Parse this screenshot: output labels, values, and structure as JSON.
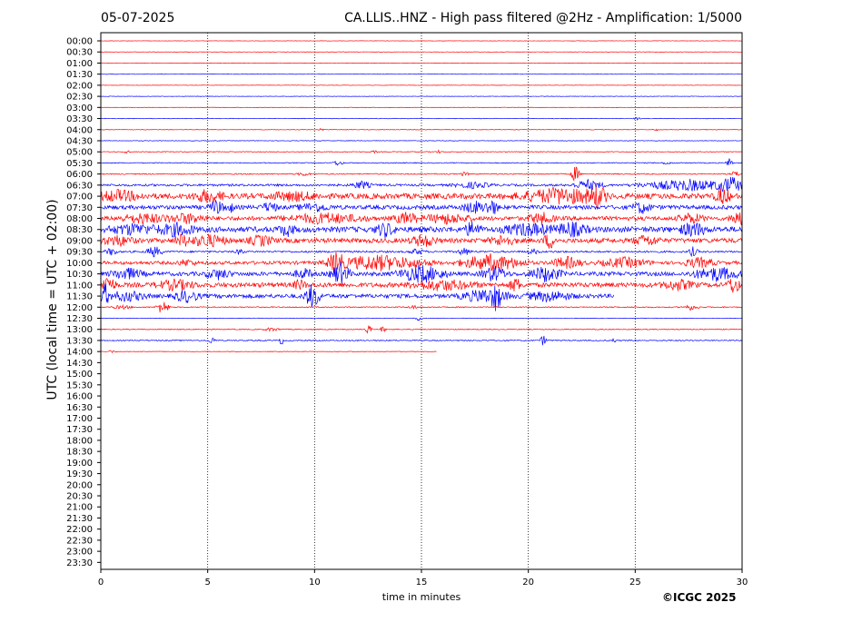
{
  "header": {
    "date": "05-07-2025",
    "title": "CA.LLIS..HNZ - High pass filtered @2Hz - Amplification: 1/5000"
  },
  "footer": {
    "copyright": "©ICGC 2025"
  },
  "colors": {
    "trace_a": "#ff0000",
    "trace_b": "#0000ff",
    "axes": "#000000",
    "grid": "#000000"
  },
  "chart_data": {
    "type": "line",
    "title": "CA.LLIS..HNZ - High pass filtered @2Hz - Amplification: 1/5000",
    "xlabel": "time in minutes",
    "ylabel": "UTC (local time = UTC + 02:00)",
    "xlim": [
      0,
      30
    ],
    "x_ticks": [
      0,
      5,
      10,
      15,
      20,
      25,
      30
    ],
    "x_grid": "dotted vertical lines at 5, 10, 15, 20, 25",
    "y_ticks": [
      "00:00",
      "00:30",
      "01:00",
      "01:30",
      "02:00",
      "02:30",
      "03:00",
      "03:30",
      "04:00",
      "04:30",
      "05:00",
      "05:30",
      "06:00",
      "06:30",
      "07:00",
      "07:30",
      "08:00",
      "08:30",
      "09:00",
      "09:30",
      "10:00",
      "10:30",
      "11:00",
      "11:30",
      "12:00",
      "12:30",
      "13:00",
      "13:30",
      "14:00",
      "14:30",
      "15:00",
      "15:30",
      "16:00",
      "16:30",
      "17:00",
      "17:30",
      "18:00",
      "18:30",
      "19:00",
      "19:30",
      "20:00",
      "20:30",
      "21:00",
      "21:30",
      "22:00",
      "22:30",
      "23:00",
      "23:30"
    ],
    "series_colors": "rows alternate red and blue",
    "rows": [
      {
        "label": "00:00",
        "color": "red",
        "end_minute": 30,
        "noise": 0.2,
        "bursts": []
      },
      {
        "label": "00:30",
        "color": "red",
        "end_minute": 30,
        "noise": 0.2,
        "bursts": []
      },
      {
        "label": "01:00",
        "color": "red",
        "end_minute": 30,
        "noise": 0.2,
        "bursts": []
      },
      {
        "label": "01:30",
        "color": "blue",
        "end_minute": 30,
        "noise": 0.2,
        "bursts": []
      },
      {
        "label": "02:00",
        "color": "red",
        "end_minute": 30,
        "noise": 0.2,
        "bursts": []
      },
      {
        "label": "02:30",
        "color": "blue",
        "end_minute": 30,
        "noise": 0.2,
        "bursts": []
      },
      {
        "label": "03:00",
        "color": "red",
        "end_minute": 30,
        "noise": 0.2,
        "bursts": []
      },
      {
        "label": "03:30",
        "color": "blue",
        "end_minute": 30,
        "noise": 0.3,
        "bursts": [
          [
            25.1,
            0.2,
            1.5
          ]
        ]
      },
      {
        "label": "04:00",
        "color": "red",
        "end_minute": 30,
        "noise": 0.3,
        "bursts": [
          [
            10.3,
            0.2,
            1.2
          ],
          [
            26,
            0.2,
            1.2
          ]
        ]
      },
      {
        "label": "04:30",
        "color": "blue",
        "end_minute": 30,
        "noise": 0.3,
        "bursts": []
      },
      {
        "label": "05:00",
        "color": "red",
        "end_minute": 30,
        "noise": 0.4,
        "bursts": [
          [
            1.2,
            0.2,
            2.5
          ],
          [
            12.8,
            0.2,
            1.5
          ],
          [
            15.8,
            0.2,
            1.5
          ]
        ]
      },
      {
        "label": "05:30",
        "color": "blue",
        "end_minute": 30,
        "noise": 0.5,
        "bursts": [
          [
            11.1,
            0.3,
            3
          ],
          [
            29.4,
            0.2,
            6
          ],
          [
            26.5,
            0.3,
            2
          ]
        ]
      },
      {
        "label": "06:00",
        "color": "red",
        "end_minute": 30,
        "noise": 0.6,
        "bursts": [
          [
            9.5,
            0.4,
            2
          ],
          [
            22.2,
            0.3,
            9
          ],
          [
            29.7,
            0.3,
            3
          ],
          [
            17,
            0.3,
            2
          ]
        ]
      },
      {
        "label": "06:30",
        "color": "blue",
        "end_minute": 30,
        "noise": 1.2,
        "bursts": [
          [
            12.2,
            0.6,
            4
          ],
          [
            17.4,
            1.2,
            3
          ],
          [
            22.8,
            1,
            5
          ],
          [
            27.5,
            3,
            6
          ],
          [
            29.5,
            0.8,
            7
          ]
        ]
      },
      {
        "label": "07:00",
        "color": "red",
        "end_minute": 30,
        "noise": 3,
        "bursts": [
          [
            0.8,
            1.5,
            5
          ],
          [
            5,
            1,
            6
          ],
          [
            9,
            1.5,
            4
          ],
          [
            21.5,
            2.5,
            8
          ],
          [
            23.2,
            0.6,
            9
          ],
          [
            29.1,
            0.5,
            8
          ]
        ]
      },
      {
        "label": "07:30",
        "color": "blue",
        "end_minute": 30,
        "noise": 2.2,
        "bursts": [
          [
            5.4,
            0.4,
            8
          ],
          [
            6,
            0.3,
            6
          ],
          [
            7.9,
            0.5,
            5
          ],
          [
            10,
            1,
            4
          ],
          [
            17.5,
            0.8,
            6
          ],
          [
            18.3,
            0.4,
            8
          ],
          [
            25.3,
            0.6,
            6
          ]
        ]
      },
      {
        "label": "08:00",
        "color": "red",
        "end_minute": 30,
        "noise": 2.2,
        "bursts": [
          [
            2,
            1.5,
            5
          ],
          [
            4,
            1.2,
            5
          ],
          [
            10.5,
            2.5,
            5
          ],
          [
            14.3,
            0.8,
            6
          ],
          [
            16.2,
            1.5,
            5
          ],
          [
            20.6,
            0.8,
            6
          ],
          [
            27.6,
            0.8,
            5
          ],
          [
            29.8,
            0.5,
            8
          ]
        ]
      },
      {
        "label": "08:30",
        "color": "blue",
        "end_minute": 30,
        "noise": 3,
        "bursts": [
          [
            1.5,
            1.5,
            5
          ],
          [
            3.5,
            1.2,
            6
          ],
          [
            8.7,
            0.5,
            6
          ],
          [
            13.3,
            0.6,
            7
          ],
          [
            17.4,
            0.5,
            8
          ],
          [
            20,
            1.5,
            6
          ],
          [
            22,
            1,
            7
          ],
          [
            27.7,
            0.8,
            7
          ]
        ]
      },
      {
        "label": "09:00",
        "color": "red",
        "end_minute": 30,
        "noise": 2.5,
        "bursts": [
          [
            0.8,
            1,
            5
          ],
          [
            3.8,
            0.5,
            6
          ],
          [
            5,
            1.2,
            6
          ],
          [
            7.5,
            0.8,
            5
          ],
          [
            15.1,
            0.8,
            6
          ],
          [
            18.8,
            0.8,
            5
          ],
          [
            21,
            0.4,
            8
          ],
          [
            25.5,
            0.8,
            5
          ]
        ]
      },
      {
        "label": "09:30",
        "color": "blue",
        "end_minute": 30,
        "noise": 1,
        "bursts": [
          [
            0.5,
            0.4,
            4
          ],
          [
            2.5,
            0.5,
            6
          ],
          [
            6.5,
            0.3,
            3
          ],
          [
            14.8,
            0.5,
            3
          ],
          [
            17,
            0.4,
            4
          ],
          [
            20.2,
            0.4,
            3
          ],
          [
            27.7,
            0.3,
            5
          ]
        ]
      },
      {
        "label": "10:00",
        "color": "red",
        "end_minute": 30,
        "noise": 1.8,
        "bursts": [
          [
            4,
            0.6,
            3
          ],
          [
            11,
            0.5,
            10
          ],
          [
            13,
            3,
            8
          ],
          [
            18.3,
            2,
            9
          ],
          [
            21.8,
            1,
            6
          ],
          [
            24.5,
            1.5,
            5
          ],
          [
            28,
            1,
            5
          ]
        ]
      },
      {
        "label": "10:30",
        "color": "blue",
        "end_minute": 30,
        "noise": 2.2,
        "bursts": [
          [
            1.2,
            1,
            6
          ],
          [
            5.5,
            0.8,
            5
          ],
          [
            9.5,
            0.6,
            5
          ],
          [
            11.2,
            0.6,
            12
          ],
          [
            15,
            1.5,
            9
          ],
          [
            18.4,
            0.8,
            8
          ],
          [
            20.8,
            1,
            8
          ],
          [
            28.8,
            1.5,
            7
          ]
        ]
      },
      {
        "label": "11:00",
        "color": "red",
        "end_minute": 30,
        "noise": 2.5,
        "bursts": [
          [
            0.3,
            0.5,
            10
          ],
          [
            3.5,
            1.2,
            5
          ],
          [
            9.3,
            0.4,
            5
          ],
          [
            16,
            2,
            5
          ],
          [
            19.4,
            0.4,
            7
          ],
          [
            27,
            1,
            5
          ],
          [
            29.6,
            0.4,
            9
          ]
        ]
      },
      {
        "label": "11:30",
        "color": "blue",
        "end_minute": 24,
        "noise": 2.2,
        "bursts": [
          [
            0.2,
            0.3,
            12
          ],
          [
            1.2,
            1.2,
            5
          ],
          [
            4,
            0.8,
            6
          ],
          [
            9.9,
            0.5,
            13
          ],
          [
            18,
            1.5,
            7
          ],
          [
            18.5,
            0.3,
            12
          ],
          [
            21,
            1.5,
            5
          ],
          [
            27.6,
            0.3,
            5
          ]
        ]
      },
      {
        "label": "12:00",
        "color": "red",
        "end_minute": 30,
        "noise": 0.6,
        "bursts": [
          [
            2.9,
            0.4,
            8
          ],
          [
            1,
            0.6,
            2
          ],
          [
            14.6,
            0.3,
            2
          ],
          [
            27.6,
            0.5,
            3
          ]
        ]
      },
      {
        "label": "12:30",
        "color": "blue",
        "end_minute": 30,
        "noise": 0.3,
        "bursts": [
          [
            14.9,
            0.2,
            4
          ]
        ]
      },
      {
        "label": "13:00",
        "color": "red",
        "end_minute": 30,
        "noise": 0.5,
        "bursts": [
          [
            8,
            0.5,
            2
          ],
          [
            12.5,
            0.2,
            6
          ],
          [
            13.2,
            0.2,
            3
          ]
        ]
      },
      {
        "label": "13:30",
        "color": "blue",
        "end_minute": 30,
        "noise": 0.6,
        "bursts": [
          [
            5.2,
            0.2,
            4
          ],
          [
            8.45,
            0.1,
            8
          ],
          [
            20.7,
            0.2,
            6
          ],
          [
            24,
            0.1,
            4
          ]
        ]
      },
      {
        "label": "14:00",
        "color": "red",
        "end_minute": 15.7,
        "noise": 0.3,
        "bursts": [
          [
            0.5,
            0.3,
            1.5
          ]
        ]
      }
    ]
  }
}
